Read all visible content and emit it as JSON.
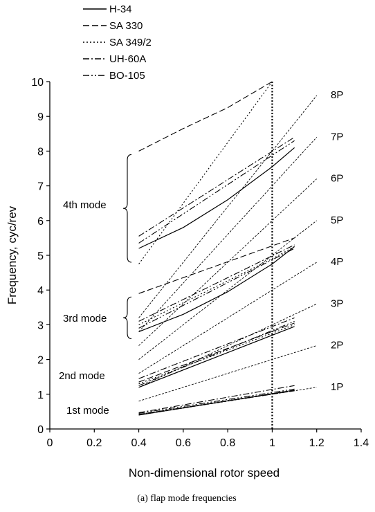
{
  "caption": "(a) flap mode frequencies",
  "colors": {
    "ink": "#000000",
    "background": "#ffffff"
  },
  "chart_data": {
    "type": "line",
    "title": "",
    "xlabel": "Non-dimensional rotor speed",
    "ylabel": "Frequency, cyc/rev",
    "xlim": [
      0,
      1.4
    ],
    "ylim": [
      0,
      10
    ],
    "xticks": [
      "0",
      "0.2",
      "0.4",
      "0.6",
      "0.8",
      "1",
      "1.2",
      "1.4"
    ],
    "yticks": [
      "0",
      "1",
      "2",
      "3",
      "4",
      "5",
      "6",
      "7",
      "8",
      "9",
      "10"
    ],
    "grid": false,
    "legend_position": "top-left",
    "legend": [
      {
        "name": "H-34",
        "dash": "solid"
      },
      {
        "name": "SA 330",
        "dash": "dashed"
      },
      {
        "name": "SA 349/2",
        "dash": "dotted"
      },
      {
        "name": "UH-60A",
        "dash": "dashdot"
      },
      {
        "name": "BO-105",
        "dash": "dashdotdot"
      }
    ],
    "reference_vertical_line": {
      "x": 1.0,
      "style": "dotted-bold"
    },
    "per_rev_lines": [
      {
        "label": "1P",
        "n": 1
      },
      {
        "label": "2P",
        "n": 2
      },
      {
        "label": "3P",
        "n": 3
      },
      {
        "label": "4P",
        "n": 4
      },
      {
        "label": "5P",
        "n": 5
      },
      {
        "label": "6P",
        "n": 6
      },
      {
        "label": "7P",
        "n": 7
      },
      {
        "label": "8P",
        "n": 8
      }
    ],
    "per_rev_x_range": [
      0.4,
      1.2
    ],
    "mode_annotations": [
      {
        "label": "1st mode",
        "bracket": null
      },
      {
        "label": "2nd mode",
        "bracket": null
      },
      {
        "label": "3rd mode",
        "bracket": [
          2.6,
          3.8
        ]
      },
      {
        "label": "4th mode",
        "bracket": [
          4.8,
          7.9
        ]
      }
    ],
    "series": [
      {
        "name": "H-34",
        "dash": "solid",
        "mode": "1st",
        "x": [
          0.4,
          1.1
        ],
        "y": [
          0.4,
          1.12
        ]
      },
      {
        "name": "H-34",
        "dash": "solid",
        "mode": "2nd",
        "x": [
          0.4,
          1.1
        ],
        "y": [
          1.2,
          2.95
        ]
      },
      {
        "name": "H-34",
        "dash": "solid",
        "mode": "3rd",
        "x": [
          0.4,
          0.6,
          0.8,
          1.0,
          1.1
        ],
        "y": [
          2.8,
          3.3,
          3.95,
          4.75,
          5.25
        ]
      },
      {
        "name": "H-34",
        "dash": "solid",
        "mode": "4th",
        "x": [
          0.4,
          0.6,
          0.8,
          1.0,
          1.1
        ],
        "y": [
          5.2,
          5.8,
          6.6,
          7.55,
          8.1
        ]
      },
      {
        "name": "SA 330",
        "dash": "dashed",
        "mode": "1st",
        "x": [
          0.4,
          1.1
        ],
        "y": [
          0.42,
          1.1
        ]
      },
      {
        "name": "SA 330",
        "dash": "dashed",
        "mode": "2nd",
        "x": [
          0.4,
          1.1
        ],
        "y": [
          1.35,
          3.05
        ]
      },
      {
        "name": "SA 330",
        "dash": "dashed",
        "mode": "3rd",
        "x": [
          0.4,
          1.1
        ],
        "y": [
          3.9,
          5.5
        ]
      },
      {
        "name": "SA 330",
        "dash": "dashed",
        "mode": "4th",
        "x": [
          0.4,
          0.6,
          0.8,
          1.0
        ],
        "y": [
          8.0,
          8.65,
          9.25,
          10.0
        ]
      },
      {
        "name": "SA 349/2",
        "dash": "dotted",
        "mode": "1st",
        "x": [
          0.4,
          1.1
        ],
        "y": [
          0.42,
          1.12
        ]
      },
      {
        "name": "SA 349/2",
        "dash": "dotted",
        "mode": "2nd",
        "x": [
          0.4,
          1.1
        ],
        "y": [
          1.3,
          3.0
        ]
      },
      {
        "name": "SA 349/2",
        "dash": "dotted",
        "mode": "3rd",
        "x": [
          0.4,
          1.0,
          1.1
        ],
        "y": [
          3.0,
          4.9,
          5.25
        ]
      },
      {
        "name": "SA 349/2",
        "dash": "dotted",
        "mode": "4th",
        "x": [
          0.4,
          1.0
        ],
        "y": [
          4.75,
          10.0
        ]
      },
      {
        "name": "UH-60A",
        "dash": "dashdot",
        "mode": "1st",
        "x": [
          0.4,
          1.1
        ],
        "y": [
          0.47,
          1.25
        ]
      },
      {
        "name": "UH-60A",
        "dash": "dashdot",
        "mode": "2nd",
        "x": [
          0.4,
          1.1
        ],
        "y": [
          1.45,
          3.2
        ]
      },
      {
        "name": "UH-60A",
        "dash": "dashdot",
        "mode": "3rd",
        "x": [
          0.4,
          1.1
        ],
        "y": [
          3.1,
          5.3
        ]
      },
      {
        "name": "UH-60A",
        "dash": "dashdot",
        "mode": "4th",
        "x": [
          0.4,
          1.1
        ],
        "y": [
          5.55,
          8.4
        ]
      },
      {
        "name": "BO-105",
        "dash": "dashdotdot",
        "mode": "1st",
        "x": [
          0.4,
          1.1
        ],
        "y": [
          0.45,
          1.15
        ]
      },
      {
        "name": "BO-105",
        "dash": "dashdotdot",
        "mode": "2nd",
        "x": [
          0.4,
          1.1
        ],
        "y": [
          1.25,
          3.1
        ]
      },
      {
        "name": "BO-105",
        "dash": "dashdotdot",
        "mode": "3rd",
        "x": [
          0.4,
          1.1
        ],
        "y": [
          2.9,
          5.2
        ]
      },
      {
        "name": "BO-105",
        "dash": "dashdotdot",
        "mode": "4th",
        "x": [
          0.4,
          1.1
        ],
        "y": [
          5.35,
          8.3
        ]
      }
    ]
  }
}
